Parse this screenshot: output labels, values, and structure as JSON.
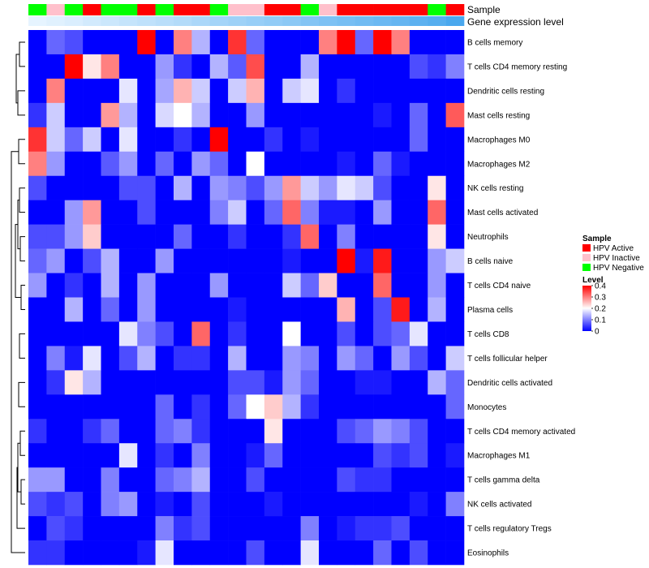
{
  "chart_data": {
    "type": "heatmap",
    "title": "",
    "annotation_tracks": [
      {
        "name": "Sample",
        "label": "Sample"
      },
      {
        "name": "Gene expression level",
        "label": "Gene expression level"
      }
    ],
    "sample_classes": [
      "HPV Active",
      "HPV Inactive",
      "HPV Negative"
    ],
    "sample_colors": {
      "HPV Active": "#ff0000",
      "HPV Inactive": "#ffc0cb",
      "HPV Negative": "#00ff00"
    },
    "columns": [
      {
        "sample": "HPV Negative",
        "expression": 0.0
      },
      {
        "sample": "HPV Inactive",
        "expression": 0.04
      },
      {
        "sample": "HPV Negative",
        "expression": 0.08
      },
      {
        "sample": "HPV Active",
        "expression": 0.13
      },
      {
        "sample": "HPV Negative",
        "expression": 0.17
      },
      {
        "sample": "HPV Negative",
        "expression": 0.21
      },
      {
        "sample": "HPV Active",
        "expression": 0.25
      },
      {
        "sample": "HPV Negative",
        "expression": 0.29
      },
      {
        "sample": "HPV Active",
        "expression": 0.33
      },
      {
        "sample": "HPV Active",
        "expression": 0.38
      },
      {
        "sample": "HPV Negative",
        "expression": 0.42
      },
      {
        "sample": "HPV Inactive",
        "expression": 0.46
      },
      {
        "sample": "HPV Inactive",
        "expression": 0.5
      },
      {
        "sample": "HPV Active",
        "expression": 0.54
      },
      {
        "sample": "HPV Active",
        "expression": 0.58
      },
      {
        "sample": "HPV Negative",
        "expression": 0.63
      },
      {
        "sample": "HPV Inactive",
        "expression": 0.67
      },
      {
        "sample": "HPV Active",
        "expression": 0.71
      },
      {
        "sample": "HPV Active",
        "expression": 0.75
      },
      {
        "sample": "HPV Active",
        "expression": 0.79
      },
      {
        "sample": "HPV Active",
        "expression": 0.83
      },
      {
        "sample": "HPV Active",
        "expression": 0.88
      },
      {
        "sample": "HPV Negative",
        "expression": 0.92
      },
      {
        "sample": "HPV Active",
        "expression": 1.0
      }
    ],
    "rows": [
      "B cells memory",
      "T cells CD4 memory resting",
      "Dendritic cells resting",
      "Mast cells resting",
      "Macrophages M0",
      "Macrophages M2",
      "NK cells resting",
      "Mast cells activated",
      "Neutrophils",
      "B cells naive",
      "T cells CD4 naive",
      "Plasma cells",
      "T cells CD8",
      "T cells follicular helper",
      "Dendritic cells activated",
      "Monocytes",
      "T cells CD4 memory activated",
      "Macrophages M1",
      "T cells gamma delta",
      "NK cells activated",
      "T cells regulatory  Tregs",
      "Eosinophils"
    ],
    "values": [
      [
        0.0,
        0.08,
        0.06,
        0.0,
        0.0,
        0.0,
        0.4,
        0.0,
        0.3,
        0.14,
        0.0,
        0.36,
        0.08,
        0.0,
        0.0,
        0.0,
        0.3,
        0.4,
        0.08,
        0.4,
        0.3,
        0.0,
        0.0,
        0.0
      ],
      [
        0.0,
        0.0,
        0.4,
        0.22,
        0.3,
        0.0,
        0.0,
        0.12,
        0.04,
        0.0,
        0.14,
        0.07,
        0.34,
        0.0,
        0.0,
        0.14,
        0.0,
        0.0,
        0.0,
        0.0,
        0.0,
        0.06,
        0.04,
        0.1
      ],
      [
        0.0,
        0.3,
        0.0,
        0.0,
        0.0,
        0.18,
        0.0,
        0.13,
        0.26,
        0.16,
        0.0,
        0.16,
        0.26,
        0.0,
        0.16,
        0.18,
        0.0,
        0.04,
        0.0,
        0.0,
        0.0,
        0.0,
        0.0,
        0.0
      ],
      [
        0.04,
        0.16,
        0.0,
        0.0,
        0.28,
        0.14,
        0.0,
        0.17,
        0.2,
        0.14,
        0.0,
        0.0,
        0.12,
        0.0,
        0.0,
        0.0,
        0.0,
        0.0,
        0.0,
        0.02,
        0.0,
        0.08,
        0.0,
        0.33
      ],
      [
        0.36,
        0.16,
        0.08,
        0.16,
        0.0,
        0.18,
        0.0,
        0.0,
        0.04,
        0.0,
        0.4,
        0.0,
        0.0,
        0.04,
        0.0,
        0.02,
        0.0,
        0.0,
        0.0,
        0.0,
        0.0,
        0.08,
        0.0,
        0.0
      ],
      [
        0.3,
        0.12,
        0.0,
        0.0,
        0.07,
        0.12,
        0.0,
        0.08,
        0.0,
        0.12,
        0.08,
        0.0,
        0.2,
        0.0,
        0.0,
        0.0,
        0.0,
        0.02,
        0.0,
        0.08,
        0.02,
        0.0,
        0.0,
        0.0
      ],
      [
        0.06,
        0.0,
        0.0,
        0.0,
        0.0,
        0.06,
        0.06,
        0.0,
        0.14,
        0.0,
        0.12,
        0.1,
        0.06,
        0.12,
        0.28,
        0.16,
        0.12,
        0.18,
        0.16,
        0.06,
        0.0,
        0.0,
        0.22,
        0.0
      ],
      [
        0.0,
        0.0,
        0.12,
        0.28,
        0.0,
        0.0,
        0.06,
        0.0,
        0.0,
        0.0,
        0.1,
        0.16,
        0.0,
        0.08,
        0.32,
        0.1,
        0.02,
        0.02,
        0.0,
        0.12,
        0.0,
        0.0,
        0.32,
        0.0
      ],
      [
        0.06,
        0.06,
        0.12,
        0.24,
        0.0,
        0.0,
        0.0,
        0.0,
        0.08,
        0.0,
        0.0,
        0.04,
        0.0,
        0.0,
        0.04,
        0.32,
        0.0,
        0.1,
        0.0,
        0.0,
        0.0,
        0.0,
        0.22,
        0.0
      ],
      [
        0.08,
        0.12,
        0.0,
        0.06,
        0.14,
        0.0,
        0.0,
        0.12,
        0.0,
        0.0,
        0.0,
        0.0,
        0.0,
        0.0,
        0.02,
        0.0,
        0.0,
        0.4,
        0.02,
        0.38,
        0.0,
        0.0,
        0.12,
        0.16
      ],
      [
        0.12,
        0.0,
        0.04,
        0.0,
        0.14,
        0.0,
        0.12,
        0.0,
        0.0,
        0.0,
        0.12,
        0.0,
        0.0,
        0.0,
        0.16,
        0.08,
        0.24,
        0.0,
        0.0,
        0.32,
        0.0,
        0.0,
        0.12,
        0.0
      ],
      [
        0.0,
        0.0,
        0.14,
        0.0,
        0.08,
        0.0,
        0.12,
        0.0,
        0.0,
        0.0,
        0.0,
        0.02,
        0.0,
        0.0,
        0.0,
        0.0,
        0.0,
        0.26,
        0.0,
        0.06,
        0.38,
        0.0,
        0.14,
        0.0
      ],
      [
        0.0,
        0.0,
        0.0,
        0.0,
        0.0,
        0.18,
        0.1,
        0.06,
        0.0,
        0.32,
        0.0,
        0.04,
        0.0,
        0.0,
        0.2,
        0.0,
        0.0,
        0.06,
        0.0,
        0.06,
        0.08,
        0.18,
        0.0,
        0.0
      ],
      [
        0.0,
        0.1,
        0.02,
        0.18,
        0.0,
        0.06,
        0.14,
        0.0,
        0.04,
        0.04,
        0.0,
        0.14,
        0.0,
        0.0,
        0.12,
        0.1,
        0.0,
        0.12,
        0.08,
        0.0,
        0.12,
        0.06,
        0.0,
        0.16
      ],
      [
        0.0,
        0.04,
        0.22,
        0.14,
        0.0,
        0.0,
        0.0,
        0.0,
        0.0,
        0.0,
        0.0,
        0.06,
        0.06,
        0.02,
        0.12,
        0.08,
        0.0,
        0.0,
        0.02,
        0.02,
        0.0,
        0.0,
        0.14,
        0.08
      ],
      [
        0.0,
        0.0,
        0.0,
        0.0,
        0.0,
        0.0,
        0.0,
        0.08,
        0.0,
        0.04,
        0.0,
        0.08,
        0.2,
        0.24,
        0.14,
        0.04,
        0.0,
        0.0,
        0.0,
        0.0,
        0.0,
        0.0,
        0.0,
        0.08
      ],
      [
        0.04,
        0.0,
        0.0,
        0.04,
        0.08,
        0.0,
        0.0,
        0.08,
        0.1,
        0.04,
        0.0,
        0.0,
        0.0,
        0.22,
        0.0,
        0.0,
        0.0,
        0.06,
        0.08,
        0.12,
        0.1,
        0.06,
        0.0,
        0.0
      ],
      [
        0.0,
        0.0,
        0.0,
        0.0,
        0.0,
        0.18,
        0.0,
        0.04,
        0.0,
        0.1,
        0.0,
        0.0,
        0.02,
        0.08,
        0.0,
        0.0,
        0.0,
        0.0,
        0.0,
        0.06,
        0.04,
        0.06,
        0.0,
        0.02
      ],
      [
        0.12,
        0.12,
        0.0,
        0.0,
        0.1,
        0.0,
        0.0,
        0.08,
        0.1,
        0.14,
        0.0,
        0.0,
        0.06,
        0.0,
        0.0,
        0.0,
        0.0,
        0.06,
        0.04,
        0.04,
        0.0,
        0.0,
        0.0,
        0.0
      ],
      [
        0.06,
        0.04,
        0.06,
        0.0,
        0.1,
        0.12,
        0.0,
        0.02,
        0.0,
        0.06,
        0.0,
        0.0,
        0.0,
        0.02,
        0.0,
        0.0,
        0.0,
        0.0,
        0.0,
        0.0,
        0.0,
        0.02,
        0.0,
        0.1
      ],
      [
        0.0,
        0.06,
        0.04,
        0.0,
        0.0,
        0.0,
        0.0,
        0.1,
        0.04,
        0.06,
        0.0,
        0.0,
        0.0,
        0.0,
        0.0,
        0.1,
        0.0,
        0.02,
        0.04,
        0.04,
        0.06,
        0.0,
        0.0,
        0.0
      ],
      [
        0.04,
        0.04,
        0.0,
        0.0,
        0.0,
        0.0,
        0.02,
        0.18,
        0.0,
        0.0,
        0.0,
        0.0,
        0.06,
        0.0,
        0.0,
        0.18,
        0.0,
        0.0,
        0.0,
        0.08,
        0.0,
        0.06,
        0.0,
        0.0
      ]
    ],
    "expression_scale": {
      "from": "#e6f4ff",
      "to": "#4aa8ee"
    },
    "color_scale": {
      "domain": [
        0,
        0.1,
        0.2,
        0.3,
        0.4
      ],
      "colors": [
        "#0000ff",
        "#8080ff",
        "#ffffff",
        "#ff8080",
        "#ff0000"
      ]
    },
    "legends": {
      "sample": {
        "title": "Sample",
        "entries": [
          {
            "label": "HPV Active",
            "color": "#ff0000"
          },
          {
            "label": "HPV Inactive",
            "color": "#ffc0cb"
          },
          {
            "label": "HPV Negative",
            "color": "#00ff00"
          }
        ]
      },
      "level": {
        "title": "Level",
        "ticks": [
          "0.4",
          "0.3",
          "0.2",
          "0.1",
          "0"
        ],
        "tick_values": [
          0.4,
          0.3,
          0.2,
          0.1,
          0
        ]
      }
    },
    "row_dendrogram": [
      [
        15,
        16
      ],
      [
        17,
        18
      ],
      [
        19,
        20
      ],
      [
        21,
        22
      ],
      [
        23,
        24
      ],
      [
        25,
        26
      ],
      [
        27,
        28
      ],
      [
        29,
        30
      ],
      [
        31,
        32
      ],
      [
        33,
        34
      ],
      [
        35,
        36
      ],
      [
        37,
        38
      ],
      [
        39,
        40
      ],
      [
        41,
        42
      ]
    ]
  }
}
